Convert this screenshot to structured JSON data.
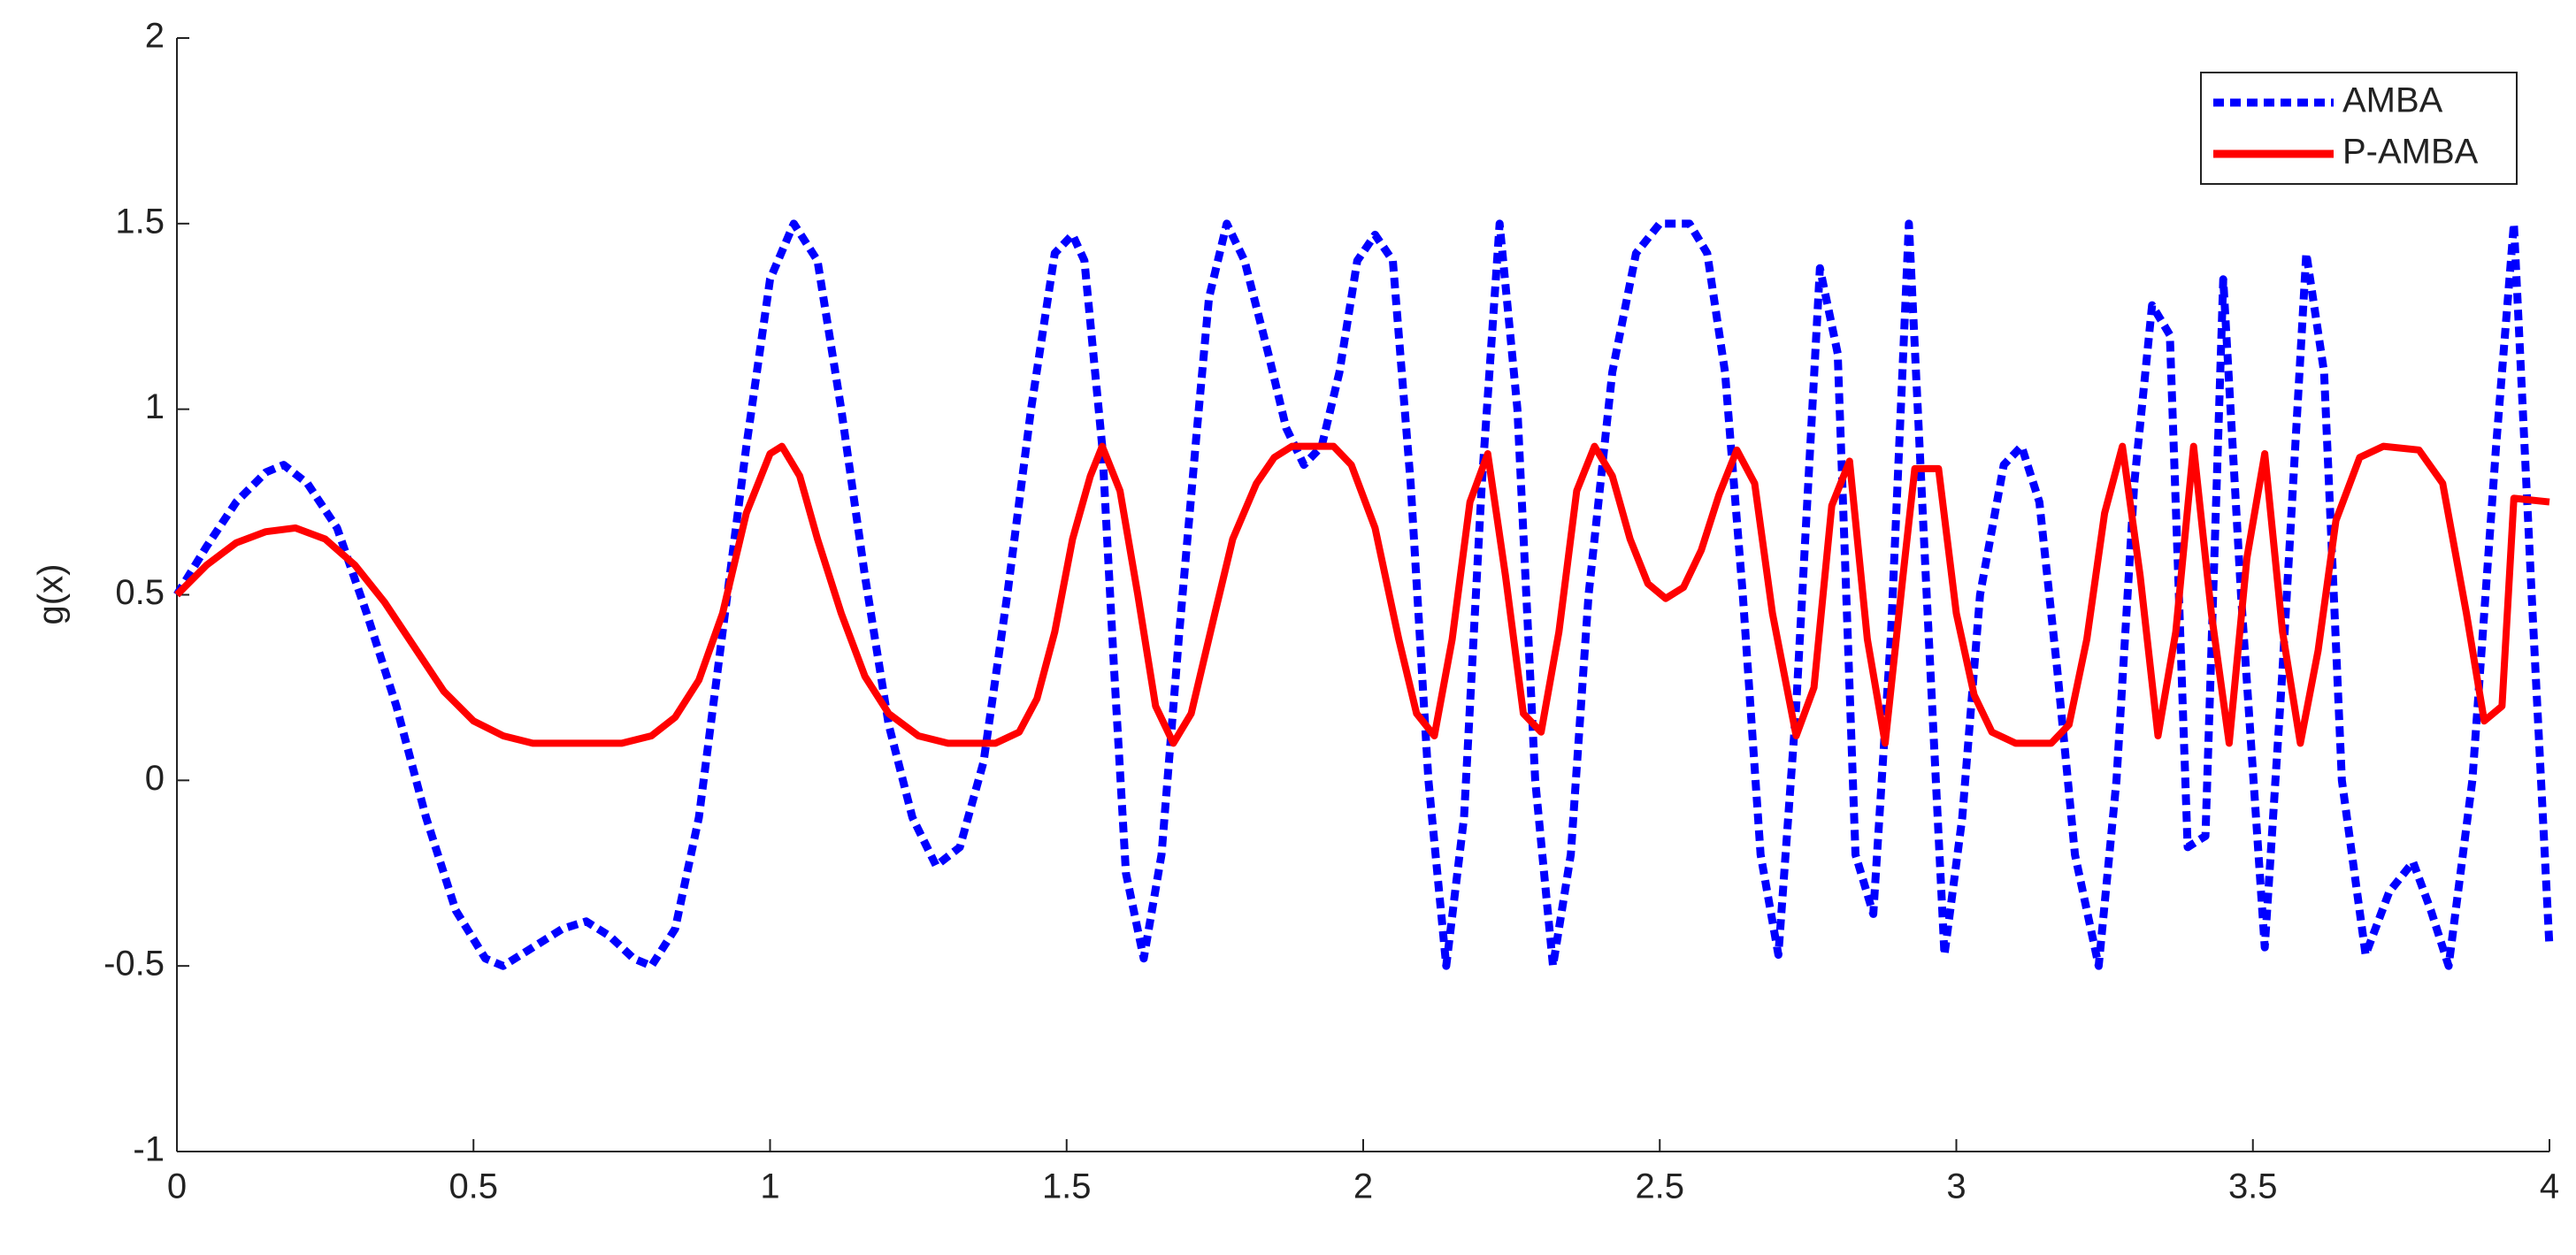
{
  "chart_data": {
    "type": "line",
    "ylabel": "g(x)",
    "xlim": [
      0,
      4
    ],
    "ylim": [
      -1,
      2
    ],
    "xticks": [
      0,
      0.5,
      1,
      1.5,
      2,
      2.5,
      3,
      3.5,
      4
    ],
    "yticks": [
      -1,
      -0.5,
      0,
      0.5,
      1,
      1.5,
      2
    ],
    "legend": "upper right",
    "series": [
      {
        "name": "AMBA",
        "color": "#0000ff",
        "line_style": "dotted",
        "x": [
          0,
          0.05,
          0.1,
          0.15,
          0.18,
          0.22,
          0.27,
          0.32,
          0.37,
          0.42,
          0.47,
          0.52,
          0.55,
          0.6,
          0.65,
          0.69,
          0.73,
          0.77,
          0.8,
          0.84,
          0.88,
          0.92,
          0.96,
          1.0,
          1.04,
          1.08,
          1.12,
          1.16,
          1.2,
          1.24,
          1.28,
          1.32,
          1.36,
          1.4,
          1.44,
          1.48,
          1.51,
          1.53,
          1.56,
          1.58,
          1.6,
          1.63,
          1.66,
          1.69,
          1.72,
          1.74,
          1.77,
          1.8,
          1.84,
          1.87,
          1.9,
          1.93,
          1.96,
          1.99,
          2.02,
          2.05,
          2.08,
          2.11,
          2.14,
          2.17,
          2.2,
          2.23,
          2.26,
          2.29,
          2.32,
          2.35,
          2.38,
          2.42,
          2.46,
          2.5,
          2.55,
          2.58,
          2.61,
          2.64,
          2.67,
          2.7,
          2.73,
          2.77,
          2.8,
          2.83,
          2.86,
          2.89,
          2.92,
          2.95,
          2.98,
          3.01,
          3.04,
          3.08,
          3.11,
          3.14,
          3.17,
          3.2,
          3.24,
          3.27,
          3.3,
          3.33,
          3.36,
          3.39,
          3.42,
          3.45,
          3.48,
          3.52,
          3.55,
          3.59,
          3.62,
          3.65,
          3.69,
          3.73,
          3.77,
          3.8,
          3.83,
          3.87,
          3.91,
          3.94,
          3.97,
          4.0
        ],
        "values": [
          0.5,
          0.63,
          0.75,
          0.83,
          0.85,
          0.8,
          0.68,
          0.45,
          0.2,
          -0.1,
          -0.35,
          -0.48,
          -0.5,
          -0.45,
          -0.4,
          -0.38,
          -0.42,
          -0.48,
          -0.5,
          -0.4,
          -0.1,
          0.4,
          0.9,
          1.35,
          1.5,
          1.4,
          1.0,
          0.55,
          0.15,
          -0.1,
          -0.23,
          -0.18,
          0.05,
          0.5,
          1.0,
          1.42,
          1.47,
          1.4,
          0.9,
          0.3,
          -0.25,
          -0.48,
          -0.2,
          0.4,
          0.95,
          1.3,
          1.5,
          1.4,
          1.15,
          0.95,
          0.85,
          0.9,
          1.1,
          1.4,
          1.47,
          1.4,
          0.8,
          0.0,
          -0.5,
          -0.1,
          0.8,
          1.5,
          1.0,
          0.0,
          -0.5,
          -0.2,
          0.5,
          1.1,
          1.42,
          1.5,
          1.5,
          1.42,
          1.1,
          0.5,
          -0.2,
          -0.47,
          0.2,
          1.38,
          1.15,
          -0.2,
          -0.36,
          0.4,
          1.5,
          0.5,
          -0.47,
          -0.1,
          0.5,
          0.85,
          0.9,
          0.75,
          0.3,
          -0.2,
          -0.5,
          0.0,
          0.8,
          1.28,
          1.2,
          -0.18,
          -0.15,
          1.35,
          0.5,
          -0.45,
          0.3,
          1.42,
          1.1,
          0.0,
          -0.47,
          -0.3,
          -0.22,
          -0.35,
          -0.5,
          0.0,
          0.9,
          1.5,
          0.5,
          -0.45
        ]
      },
      {
        "name": "P-AMBA",
        "color": "#ff0000",
        "line_style": "solid",
        "x": [
          0,
          0.05,
          0.1,
          0.15,
          0.2,
          0.25,
          0.3,
          0.35,
          0.4,
          0.45,
          0.5,
          0.55,
          0.6,
          0.7,
          0.75,
          0.8,
          0.84,
          0.88,
          0.92,
          0.96,
          1.0,
          1.02,
          1.05,
          1.08,
          1.12,
          1.16,
          1.2,
          1.25,
          1.3,
          1.38,
          1.42,
          1.45,
          1.48,
          1.51,
          1.54,
          1.56,
          1.59,
          1.62,
          1.65,
          1.68,
          1.71,
          1.75,
          1.78,
          1.82,
          1.85,
          1.88,
          1.95,
          1.98,
          2.02,
          2.06,
          2.09,
          2.12,
          2.15,
          2.18,
          2.21,
          2.24,
          2.27,
          2.3,
          2.33,
          2.36,
          2.39,
          2.42,
          2.45,
          2.48,
          2.51,
          2.54,
          2.57,
          2.6,
          2.63,
          2.66,
          2.69,
          2.73,
          2.76,
          2.79,
          2.82,
          2.85,
          2.88,
          2.91,
          2.93,
          2.97,
          3.0,
          3.03,
          3.06,
          3.1,
          3.16,
          3.19,
          3.22,
          3.25,
          3.28,
          3.31,
          3.34,
          3.37,
          3.4,
          3.43,
          3.46,
          3.49,
          3.52,
          3.55,
          3.58,
          3.61,
          3.64,
          3.68,
          3.72,
          3.78,
          3.82,
          3.86,
          3.89,
          3.92,
          3.94,
          4.0
        ],
        "values": [
          0.5,
          0.58,
          0.64,
          0.67,
          0.68,
          0.65,
          0.58,
          0.48,
          0.36,
          0.24,
          0.16,
          0.12,
          0.1,
          0.1,
          0.1,
          0.12,
          0.17,
          0.27,
          0.45,
          0.72,
          0.88,
          0.9,
          0.82,
          0.65,
          0.45,
          0.28,
          0.18,
          0.12,
          0.1,
          0.1,
          0.13,
          0.22,
          0.4,
          0.65,
          0.82,
          0.9,
          0.78,
          0.5,
          0.2,
          0.1,
          0.18,
          0.45,
          0.65,
          0.8,
          0.87,
          0.9,
          0.9,
          0.85,
          0.68,
          0.38,
          0.18,
          0.12,
          0.38,
          0.75,
          0.88,
          0.55,
          0.18,
          0.13,
          0.4,
          0.78,
          0.9,
          0.82,
          0.65,
          0.53,
          0.49,
          0.52,
          0.62,
          0.77,
          0.89,
          0.8,
          0.45,
          0.12,
          0.25,
          0.74,
          0.86,
          0.38,
          0.1,
          0.55,
          0.84,
          0.84,
          0.45,
          0.23,
          0.13,
          0.1,
          0.1,
          0.15,
          0.38,
          0.72,
          0.9,
          0.55,
          0.12,
          0.4,
          0.9,
          0.45,
          0.1,
          0.6,
          0.88,
          0.4,
          0.1,
          0.35,
          0.7,
          0.87,
          0.9,
          0.89,
          0.8,
          0.45,
          0.16,
          0.2,
          0.76,
          0.75
        ]
      }
    ]
  }
}
